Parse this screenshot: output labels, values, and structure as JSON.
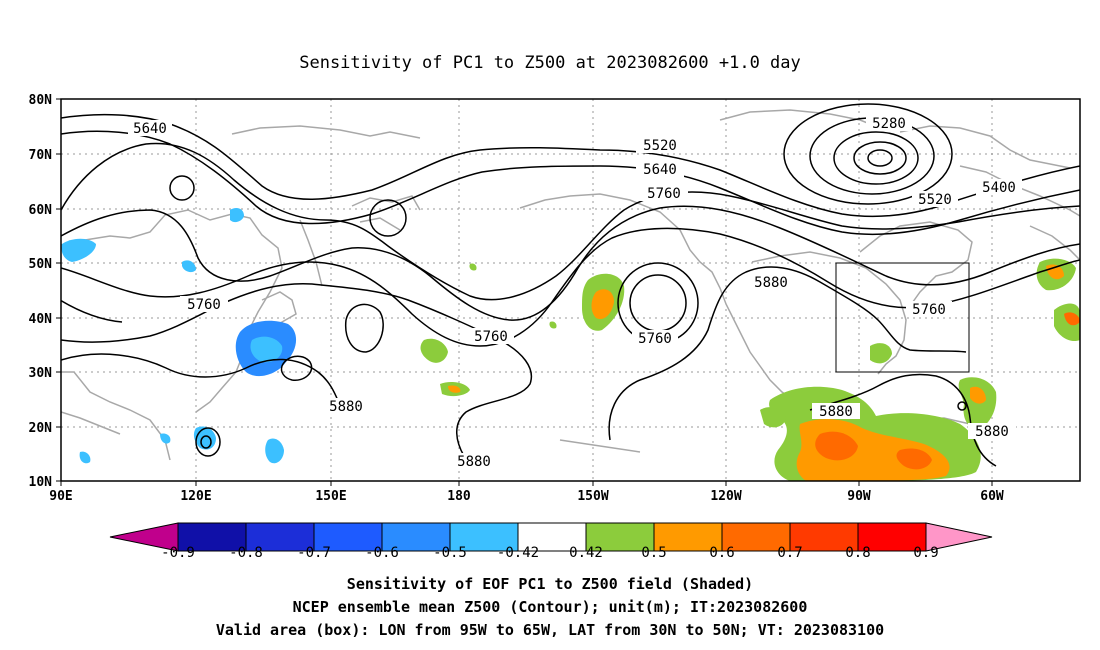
{
  "title": "Sensitivity of PC1 to Z500 at 2023082600 +1.0 day",
  "lat_ticks": [
    "80N",
    "70N",
    "60N",
    "50N",
    "40N",
    "30N",
    "20N",
    "10N"
  ],
  "lon_ticks": [
    "90E",
    "120E",
    "150E",
    "180",
    "150W",
    "120W",
    "90W",
    "60W"
  ],
  "contour_labels": [
    {
      "text": "5640"
    },
    {
      "text": "5520"
    },
    {
      "text": "5640"
    },
    {
      "text": "5280"
    },
    {
      "text": "5760"
    },
    {
      "text": "5400"
    },
    {
      "text": "5520"
    },
    {
      "text": "5760"
    },
    {
      "text": "5880"
    },
    {
      "text": "5760"
    },
    {
      "text": "5760"
    },
    {
      "text": "5760"
    },
    {
      "text": "5880"
    },
    {
      "text": "5880"
    },
    {
      "text": "5880"
    },
    {
      "text": "5880"
    }
  ],
  "colorbar": {
    "colors": [
      "#c0008c",
      "#1010a8",
      "#1c2ed8",
      "#1e5bff",
      "#2a8cff",
      "#3cc0ff",
      "#ffffff",
      "#8ccc3c",
      "#ff9a00",
      "#ff6a00",
      "#ff3a00",
      "#ff0000",
      "#ff96c8"
    ],
    "labels": [
      "-0.9",
      "-0.8",
      "-0.7",
      "-0.6",
      "-0.5",
      "-0.42",
      "0.42",
      "0.5",
      "0.6",
      "0.7",
      "0.8",
      "0.9"
    ]
  },
  "box": {
    "lon_from": "95W",
    "lon_to": "65W",
    "lat_from": "30N",
    "lat_to": "50N"
  },
  "caption": {
    "line1": "Sensitivity of EOF PC1 to Z500 field (Shaded)",
    "line2": "NCEP ensemble mean Z500 (Contour); unit(m); IT:2023082600",
    "line3": "Valid area (box): LON from 95W to 65W, LAT from 30N to 50N; VT: 2023083100"
  }
}
